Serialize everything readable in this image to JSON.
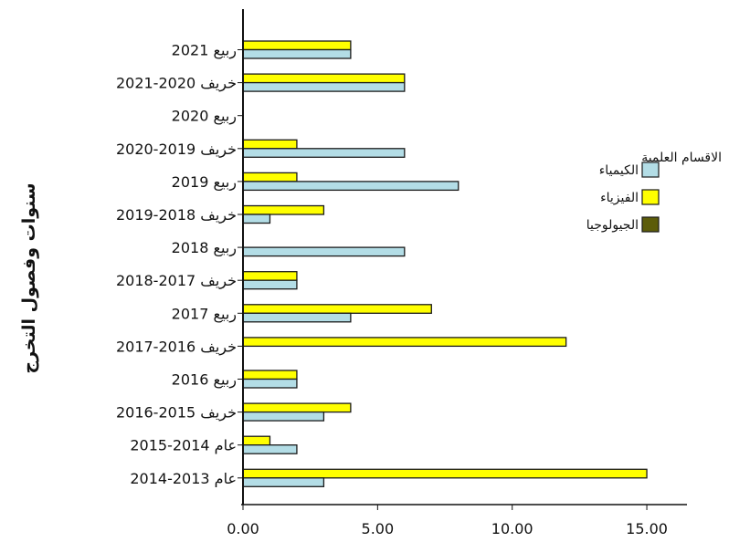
{
  "chart_data": {
    "type": "bar",
    "orientation": "horizontal",
    "xlabel": "",
    "ylabel": "سنوات وفصول التخرج",
    "xlim": [
      0,
      16.5
    ],
    "xticks": [
      0,
      5,
      10,
      15
    ],
    "xtick_labels": [
      "0.00",
      "5.00",
      "10.00",
      "15.00"
    ],
    "categories": [
      "ربيع 2021",
      "خريف 2020-2021",
      "ربيع 2020",
      "خريف 2019-2020",
      "ربيع 2019",
      "خريف 2018-2019",
      "ربيع 2018",
      "خريف 2017-2018",
      "ربيع 2017",
      "خريف 2016-2017",
      "ربيع 2016",
      "خريف 2015-2016",
      "عام 2014-2015",
      "عام 2013-2014"
    ],
    "legend_title": "الاقسام العلمية",
    "legend_position": "right",
    "series": [
      {
        "name": "الكيمياء",
        "color": "#b3dde6",
        "values": [
          4,
          6,
          0,
          6,
          8,
          1,
          6,
          2,
          4,
          0,
          2,
          3,
          2,
          3
        ]
      },
      {
        "name": "الفيزياء",
        "color": "#ffff00",
        "values": [
          4,
          6,
          0,
          2,
          2,
          3,
          0,
          2,
          7,
          12,
          2,
          4,
          1,
          15
        ]
      },
      {
        "name": "الجيولوجيا",
        "color": "#5c5c0a",
        "values": [
          0,
          0,
          0,
          0,
          0,
          0,
          0,
          0,
          0,
          0,
          0,
          0,
          0,
          0
        ]
      }
    ],
    "grid": false
  }
}
